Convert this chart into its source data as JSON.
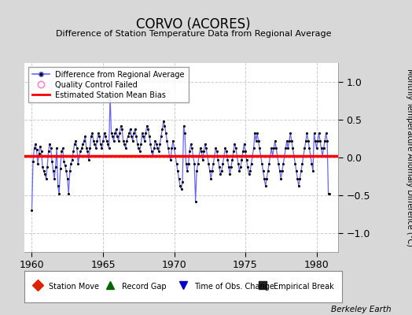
{
  "title": "CORVO (ACORES)",
  "subtitle": "Difference of Station Temperature Data from Regional Average",
  "ylabel": "Monthly Temperature Anomaly Difference (°C)",
  "ylim": [
    -1.25,
    1.25
  ],
  "yticks": [
    -1,
    -0.5,
    0,
    0.5,
    1
  ],
  "xlim": [
    1959.5,
    1981.5
  ],
  "xticks": [
    1960,
    1965,
    1970,
    1975,
    1980
  ],
  "bias_line": 0.02,
  "background_color": "#d8d8d8",
  "plot_bg_color": "#ffffff",
  "line_color": "#6666ff",
  "dot_color": "#000000",
  "bias_color": "#ff0000",
  "grid_color": "#cccccc",
  "watermark": "Berkeley Earth",
  "data": [
    [
      1960.0,
      -0.7
    ],
    [
      1960.083,
      -0.05
    ],
    [
      1960.167,
      0.12
    ],
    [
      1960.25,
      0.18
    ],
    [
      1960.333,
      0.1
    ],
    [
      1960.417,
      -0.08
    ],
    [
      1960.5,
      0.05
    ],
    [
      1960.583,
      0.15
    ],
    [
      1960.667,
      0.08
    ],
    [
      1960.75,
      -0.12
    ],
    [
      1960.833,
      -0.18
    ],
    [
      1960.917,
      -0.22
    ],
    [
      1961.0,
      -0.28
    ],
    [
      1961.083,
      -0.12
    ],
    [
      1961.167,
      0.08
    ],
    [
      1961.25,
      0.18
    ],
    [
      1961.333,
      0.12
    ],
    [
      1961.417,
      -0.05
    ],
    [
      1961.5,
      -0.18
    ],
    [
      1961.583,
      -0.28
    ],
    [
      1961.667,
      -0.12
    ],
    [
      1961.75,
      0.12
    ],
    [
      1961.833,
      -0.38
    ],
    [
      1961.917,
      -0.48
    ],
    [
      1962.0,
      -0.15
    ],
    [
      1962.083,
      0.08
    ],
    [
      1962.167,
      0.12
    ],
    [
      1962.25,
      -0.05
    ],
    [
      1962.333,
      -0.1
    ],
    [
      1962.417,
      -0.18
    ],
    [
      1962.5,
      -0.28
    ],
    [
      1962.583,
      -0.48
    ],
    [
      1962.667,
      -0.18
    ],
    [
      1962.75,
      -0.08
    ],
    [
      1962.833,
      -0.03
    ],
    [
      1962.917,
      0.08
    ],
    [
      1963.0,
      0.18
    ],
    [
      1963.083,
      0.22
    ],
    [
      1963.167,
      0.12
    ],
    [
      1963.25,
      -0.08
    ],
    [
      1963.333,
      0.02
    ],
    [
      1963.417,
      0.08
    ],
    [
      1963.5,
      0.12
    ],
    [
      1963.583,
      0.18
    ],
    [
      1963.667,
      0.22
    ],
    [
      1963.75,
      0.28
    ],
    [
      1963.833,
      0.12
    ],
    [
      1963.917,
      0.08
    ],
    [
      1964.0,
      -0.03
    ],
    [
      1964.083,
      0.12
    ],
    [
      1964.167,
      0.28
    ],
    [
      1964.25,
      0.32
    ],
    [
      1964.333,
      0.22
    ],
    [
      1964.417,
      0.18
    ],
    [
      1964.5,
      0.12
    ],
    [
      1964.583,
      0.22
    ],
    [
      1964.667,
      0.32
    ],
    [
      1964.75,
      0.28
    ],
    [
      1964.833,
      0.18
    ],
    [
      1964.917,
      0.12
    ],
    [
      1965.0,
      0.22
    ],
    [
      1965.083,
      0.32
    ],
    [
      1965.167,
      0.28
    ],
    [
      1965.25,
      0.22
    ],
    [
      1965.333,
      0.18
    ],
    [
      1965.417,
      0.12
    ],
    [
      1965.5,
      0.82
    ],
    [
      1965.583,
      0.32
    ],
    [
      1965.667,
      0.28
    ],
    [
      1965.75,
      0.22
    ],
    [
      1965.833,
      0.32
    ],
    [
      1965.917,
      0.38
    ],
    [
      1966.0,
      0.28
    ],
    [
      1966.083,
      0.22
    ],
    [
      1966.167,
      0.32
    ],
    [
      1966.25,
      0.42
    ],
    [
      1966.333,
      0.38
    ],
    [
      1966.417,
      0.22
    ],
    [
      1966.5,
      0.18
    ],
    [
      1966.583,
      0.12
    ],
    [
      1966.667,
      0.22
    ],
    [
      1966.75,
      0.28
    ],
    [
      1966.833,
      0.32
    ],
    [
      1966.917,
      0.38
    ],
    [
      1967.0,
      0.28
    ],
    [
      1967.083,
      0.22
    ],
    [
      1967.167,
      0.32
    ],
    [
      1967.25,
      0.38
    ],
    [
      1967.333,
      0.28
    ],
    [
      1967.417,
      0.18
    ],
    [
      1967.5,
      0.12
    ],
    [
      1967.583,
      0.08
    ],
    [
      1967.667,
      0.18
    ],
    [
      1967.75,
      0.32
    ],
    [
      1967.833,
      0.28
    ],
    [
      1967.917,
      0.22
    ],
    [
      1968.0,
      0.32
    ],
    [
      1968.083,
      0.42
    ],
    [
      1968.167,
      0.38
    ],
    [
      1968.25,
      0.28
    ],
    [
      1968.333,
      0.18
    ],
    [
      1968.417,
      0.08
    ],
    [
      1968.5,
      0.02
    ],
    [
      1968.583,
      0.12
    ],
    [
      1968.667,
      0.22
    ],
    [
      1968.75,
      0.18
    ],
    [
      1968.833,
      0.12
    ],
    [
      1968.917,
      0.08
    ],
    [
      1969.0,
      0.18
    ],
    [
      1969.083,
      0.28
    ],
    [
      1969.167,
      0.38
    ],
    [
      1969.25,
      0.48
    ],
    [
      1969.333,
      0.42
    ],
    [
      1969.417,
      0.32
    ],
    [
      1969.5,
      0.22
    ],
    [
      1969.583,
      0.12
    ],
    [
      1969.667,
      0.02
    ],
    [
      1969.75,
      -0.03
    ],
    [
      1969.833,
      0.12
    ],
    [
      1969.917,
      0.22
    ],
    [
      1970.0,
      0.12
    ],
    [
      1970.083,
      0.02
    ],
    [
      1970.167,
      -0.08
    ],
    [
      1970.25,
      -0.18
    ],
    [
      1970.333,
      -0.28
    ],
    [
      1970.417,
      -0.38
    ],
    [
      1970.5,
      -0.42
    ],
    [
      1970.583,
      -0.32
    ],
    [
      1970.667,
      0.42
    ],
    [
      1970.75,
      0.32
    ],
    [
      1970.833,
      -0.08
    ],
    [
      1970.917,
      -0.18
    ],
    [
      1971.0,
      -0.08
    ],
    [
      1971.083,
      0.08
    ],
    [
      1971.167,
      0.18
    ],
    [
      1971.25,
      0.12
    ],
    [
      1971.333,
      0.02
    ],
    [
      1971.417,
      -0.08
    ],
    [
      1971.5,
      -0.58
    ],
    [
      1971.583,
      -0.18
    ],
    [
      1971.667,
      -0.08
    ],
    [
      1971.75,
      0.02
    ],
    [
      1971.833,
      0.12
    ],
    [
      1971.917,
      0.08
    ],
    [
      1972.0,
      -0.03
    ],
    [
      1972.083,
      0.08
    ],
    [
      1972.167,
      0.18
    ],
    [
      1972.25,
      0.12
    ],
    [
      1972.333,
      0.02
    ],
    [
      1972.417,
      -0.08
    ],
    [
      1972.5,
      -0.18
    ],
    [
      1972.583,
      -0.28
    ],
    [
      1972.667,
      -0.18
    ],
    [
      1972.75,
      -0.08
    ],
    [
      1972.833,
      0.02
    ],
    [
      1972.917,
      0.12
    ],
    [
      1973.0,
      0.08
    ],
    [
      1973.083,
      -0.03
    ],
    [
      1973.167,
      -0.12
    ],
    [
      1973.25,
      -0.22
    ],
    [
      1973.333,
      -0.18
    ],
    [
      1973.417,
      -0.08
    ],
    [
      1973.5,
      0.02
    ],
    [
      1973.583,
      0.12
    ],
    [
      1973.667,
      0.08
    ],
    [
      1973.75,
      -0.03
    ],
    [
      1973.833,
      -0.12
    ],
    [
      1973.917,
      -0.22
    ],
    [
      1974.0,
      -0.12
    ],
    [
      1974.083,
      -0.03
    ],
    [
      1974.167,
      0.08
    ],
    [
      1974.25,
      0.18
    ],
    [
      1974.333,
      0.12
    ],
    [
      1974.417,
      0.02
    ],
    [
      1974.5,
      -0.08
    ],
    [
      1974.583,
      -0.18
    ],
    [
      1974.667,
      -0.12
    ],
    [
      1974.75,
      -0.03
    ],
    [
      1974.833,
      0.08
    ],
    [
      1974.917,
      0.18
    ],
    [
      1975.0,
      0.08
    ],
    [
      1975.083,
      -0.03
    ],
    [
      1975.167,
      -0.12
    ],
    [
      1975.25,
      -0.22
    ],
    [
      1975.333,
      -0.18
    ],
    [
      1975.417,
      -0.08
    ],
    [
      1975.5,
      0.02
    ],
    [
      1975.583,
      0.12
    ],
    [
      1975.667,
      0.32
    ],
    [
      1975.75,
      0.22
    ],
    [
      1975.833,
      0.32
    ],
    [
      1975.917,
      0.22
    ],
    [
      1976.0,
      0.12
    ],
    [
      1976.083,
      0.02
    ],
    [
      1976.167,
      -0.08
    ],
    [
      1976.25,
      -0.18
    ],
    [
      1976.333,
      -0.28
    ],
    [
      1976.417,
      -0.38
    ],
    [
      1976.5,
      -0.28
    ],
    [
      1976.583,
      -0.18
    ],
    [
      1976.667,
      -0.08
    ],
    [
      1976.75,
      0.02
    ],
    [
      1976.833,
      0.12
    ],
    [
      1976.917,
      0.02
    ],
    [
      1977.0,
      0.12
    ],
    [
      1977.083,
      0.22
    ],
    [
      1977.167,
      0.12
    ],
    [
      1977.25,
      0.02
    ],
    [
      1977.333,
      -0.08
    ],
    [
      1977.417,
      -0.18
    ],
    [
      1977.5,
      -0.28
    ],
    [
      1977.583,
      -0.18
    ],
    [
      1977.667,
      -0.08
    ],
    [
      1977.75,
      0.02
    ],
    [
      1977.833,
      0.12
    ],
    [
      1977.917,
      0.22
    ],
    [
      1978.0,
      0.12
    ],
    [
      1978.083,
      0.22
    ],
    [
      1978.167,
      0.32
    ],
    [
      1978.25,
      0.22
    ],
    [
      1978.333,
      0.12
    ],
    [
      1978.417,
      0.02
    ],
    [
      1978.5,
      -0.08
    ],
    [
      1978.583,
      -0.18
    ],
    [
      1978.667,
      -0.28
    ],
    [
      1978.75,
      -0.38
    ],
    [
      1978.833,
      -0.28
    ],
    [
      1978.917,
      -0.18
    ],
    [
      1979.0,
      -0.08
    ],
    [
      1979.083,
      0.02
    ],
    [
      1979.167,
      0.12
    ],
    [
      1979.25,
      0.22
    ],
    [
      1979.333,
      0.32
    ],
    [
      1979.417,
      0.22
    ],
    [
      1979.5,
      0.12
    ],
    [
      1979.583,
      0.02
    ],
    [
      1979.667,
      -0.08
    ],
    [
      1979.75,
      -0.18
    ],
    [
      1979.833,
      0.32
    ],
    [
      1979.917,
      0.22
    ],
    [
      1980.0,
      0.12
    ],
    [
      1980.083,
      0.22
    ],
    [
      1980.167,
      0.32
    ],
    [
      1980.25,
      0.22
    ],
    [
      1980.333,
      0.12
    ],
    [
      1980.417,
      0.02
    ],
    [
      1980.5,
      0.12
    ],
    [
      1980.583,
      0.22
    ],
    [
      1980.667,
      0.32
    ],
    [
      1980.75,
      0.22
    ],
    [
      1980.833,
      -0.48
    ],
    [
      1980.917,
      -0.48
    ]
  ]
}
